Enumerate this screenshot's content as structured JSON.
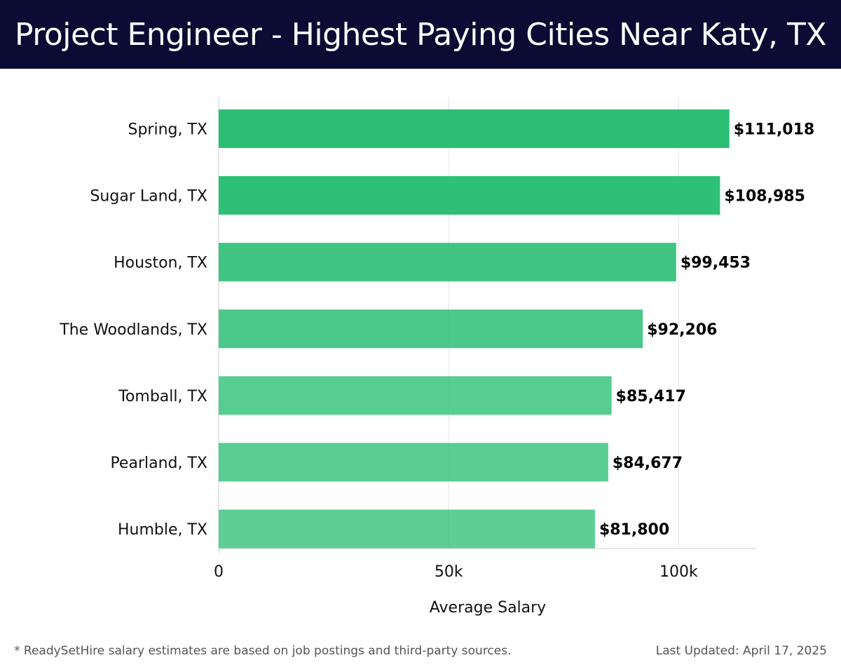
{
  "header": {
    "title": "Project Engineer - Highest Paying Cities Near Katy, TX"
  },
  "footer": {
    "note": "* ReadySetHire salary estimates are based on job postings and third-party sources.",
    "updated": "Last Updated: April 17, 2025"
  },
  "colors": {
    "header_bg": "#0b0b33",
    "bar_strong": "#2bbf74",
    "bar_light": "#57cc96"
  },
  "chart_data": {
    "type": "bar",
    "orientation": "horizontal",
    "title": "Project Engineer - Highest Paying Cities Near Katy, TX",
    "xlabel": "Average Salary",
    "ylabel": "",
    "categories": [
      "Spring, TX",
      "Sugar Land, TX",
      "Houston, TX",
      "The Woodlands, TX",
      "Tomball, TX",
      "Pearland, TX",
      "Humble, TX"
    ],
    "values": [
      111018,
      108985,
      99453,
      92206,
      85417,
      84677,
      81800
    ],
    "value_labels": [
      "$111,018",
      "$108,985",
      "$99,453",
      "$92,206",
      "$85,417",
      "$84,677",
      "$81,800"
    ],
    "xlim": [
      0,
      117000
    ],
    "xticks": [
      0,
      50000,
      100000
    ],
    "xtick_labels": [
      "0",
      "50k",
      "100k"
    ],
    "grid": "vertical",
    "legend": "none"
  }
}
